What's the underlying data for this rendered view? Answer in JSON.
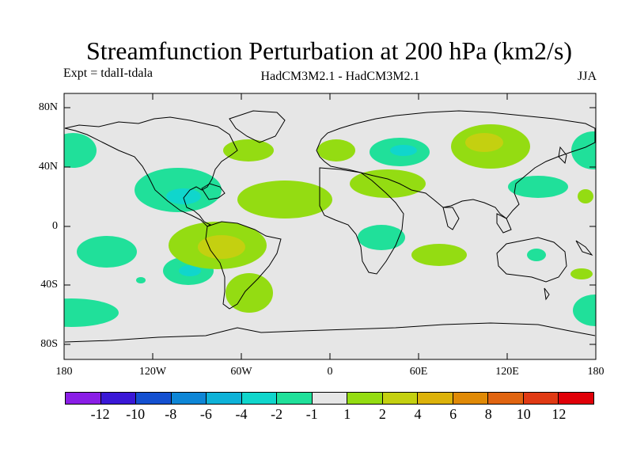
{
  "header": {
    "title": "Streamfunction Perturbation at 200 hPa (km2/s)",
    "experiment": "Expt = tdalI-tdala",
    "models": "HadCM3M2.1 - HadCM3M2.1",
    "season": "JJA"
  },
  "axes": {
    "lat_labels": [
      "80N",
      "40N",
      "0",
      "40S",
      "80S"
    ],
    "lon_labels": [
      "180",
      "120W",
      "60W",
      "0",
      "60E",
      "120E",
      "180"
    ]
  },
  "colorbar": {
    "labels": [
      "-12",
      "-10",
      "-8",
      "-6",
      "-4",
      "-2",
      "-1",
      "1",
      "2",
      "4",
      "6",
      "8",
      "10",
      "12"
    ],
    "colors": [
      "#8a1ee6",
      "#3a18d6",
      "#1450d0",
      "#0e86d6",
      "#0eb2d8",
      "#10d6cc",
      "#20e09a",
      "#e6e6e6",
      "#94dc12",
      "#c4d010",
      "#dcb20a",
      "#e08a06",
      "#e06410",
      "#e03a14",
      "#e00008"
    ]
  },
  "colors": {
    "land_background": "#e6e6e6",
    "coast": "#000000"
  }
}
